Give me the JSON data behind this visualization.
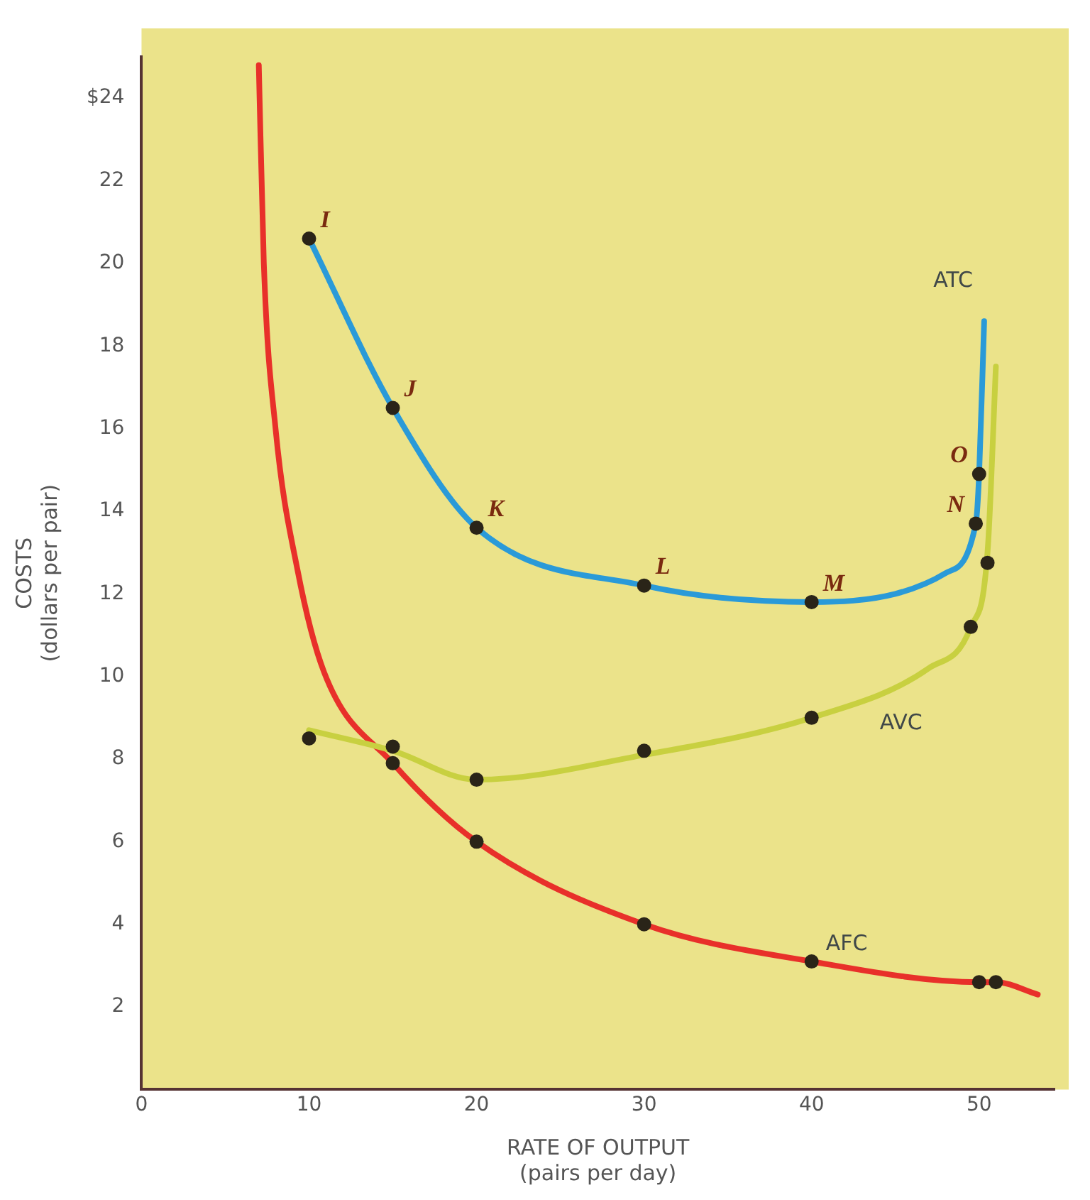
{
  "chart_data": {
    "type": "line",
    "xlabel": "RATE OF OUTPUT\n(pairs per day)",
    "ylabel": "COSTS\n(dollars per pair)",
    "xlim": [
      0,
      54.5
    ],
    "ylim": [
      0,
      25
    ],
    "xticks": [
      0,
      10,
      20,
      30,
      40,
      50
    ],
    "yticks": [
      2,
      4,
      6,
      8,
      10,
      12,
      14,
      16,
      18,
      20,
      22,
      {
        "value": 24,
        "label": "$24"
      }
    ],
    "grid": false,
    "legend": false,
    "marker": "none",
    "line_style": "solid",
    "series": [
      {
        "name": "ATC",
        "color": "#2a9ad8",
        "x": [
          10,
          15,
          20,
          30,
          40,
          45,
          48,
          49.8,
          50,
          50.3
        ],
        "values": [
          20.6,
          16.5,
          13.6,
          12.2,
          11.8,
          12.0,
          12.5,
          13.7,
          14.9,
          18.6
        ]
      },
      {
        "name": "AVC",
        "color": "#c8d040",
        "x": [
          10,
          15,
          20,
          30,
          40,
          47,
          49.5,
          50.5,
          51
        ],
        "values": [
          8.7,
          8.2,
          7.5,
          8.1,
          9.0,
          10.2,
          11.2,
          13.0,
          17.5
        ]
      },
      {
        "name": "AFC",
        "color": "#e8302a",
        "x": [
          7.0,
          7.3,
          8.0,
          9.3,
          10.9,
          15,
          20,
          30,
          40,
          50,
          51,
          53.5
        ],
        "values": [
          24.8,
          20,
          16,
          12.6,
          10.1,
          7.9,
          6.0,
          4.0,
          3.1,
          2.6,
          2.6,
          2.3
        ]
      },
      {
        "type": "scatter",
        "marker": "circle",
        "color": "#2a2418",
        "x": [
          10,
          15,
          20,
          30,
          40,
          49.8,
          50,
          10,
          15,
          20,
          30,
          40,
          49.5,
          50.5,
          15,
          20,
          30,
          40,
          50,
          51
        ],
        "values": [
          20.6,
          16.5,
          13.6,
          12.2,
          11.8,
          13.7,
          14.9,
          8.5,
          8.3,
          7.5,
          8.2,
          9.0,
          11.2,
          12.75,
          7.9,
          6.0,
          4.0,
          3.1,
          2.6,
          2.6
        ]
      }
    ],
    "annotations": [
      {
        "text": "I",
        "x": 10,
        "y": 20.6
      },
      {
        "text": "J",
        "x": 15,
        "y": 16.5
      },
      {
        "text": "K",
        "x": 20,
        "y": 13.6
      },
      {
        "text": "L",
        "x": 30,
        "y": 12.2
      },
      {
        "text": "M",
        "x": 40,
        "y": 11.8
      },
      {
        "text": "N",
        "x": 49.8,
        "y": 13.7
      },
      {
        "text": "O",
        "x": 50,
        "y": 14.9
      }
    ]
  }
}
